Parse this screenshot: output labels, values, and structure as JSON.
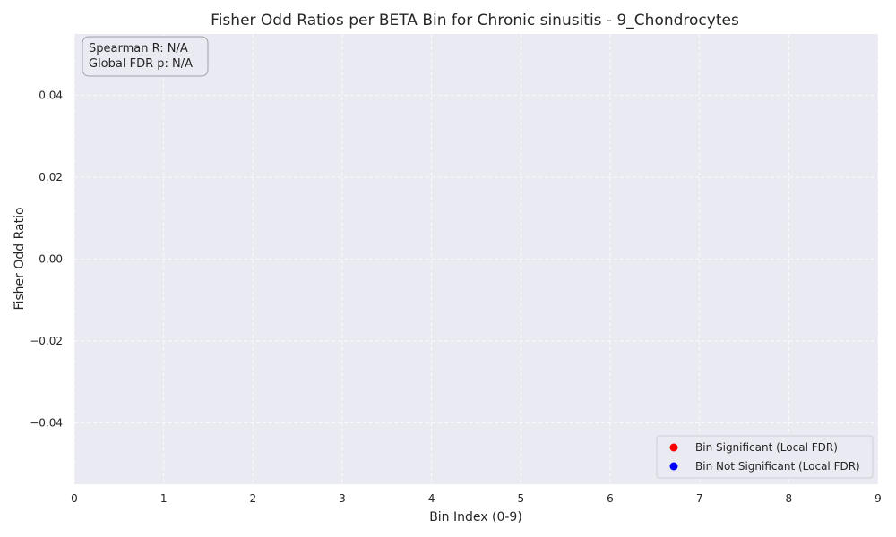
{
  "chart_data": {
    "type": "scatter",
    "title": "Fisher Odd Ratios per BETA Bin for Chronic sinusitis - 9_Chondrocytes",
    "xlabel": "Bin Index (0-9)",
    "ylabel": "Fisher Odd Ratio",
    "xlim": [
      0,
      9
    ],
    "ylim": [
      -0.055,
      0.055
    ],
    "x_ticks": [
      "0",
      "1",
      "2",
      "3",
      "4",
      "5",
      "6",
      "7",
      "8",
      "9"
    ],
    "y_ticks": [
      {
        "value": 0.04,
        "label": "0.04"
      },
      {
        "value": 0.02,
        "label": "0.02"
      },
      {
        "value": 0.0,
        "label": "0.00"
      },
      {
        "value": -0.02,
        "label": "−0.02"
      },
      {
        "value": -0.04,
        "label": "−0.04"
      }
    ],
    "grid": true,
    "series": [
      {
        "name": "Bin Significant (Local FDR)",
        "color": "#ff0000",
        "points": []
      },
      {
        "name": "Bin Not Significant (Local FDR)",
        "color": "#0000ff",
        "points": []
      }
    ],
    "legend_position": "bottom-right",
    "annotation": {
      "line1": "Spearman R: N/A",
      "line2": "Global FDR p: N/A"
    },
    "colors": {
      "plot_background": "#eaeaf2",
      "grid": "#ffffff",
      "text": "#262626"
    }
  }
}
